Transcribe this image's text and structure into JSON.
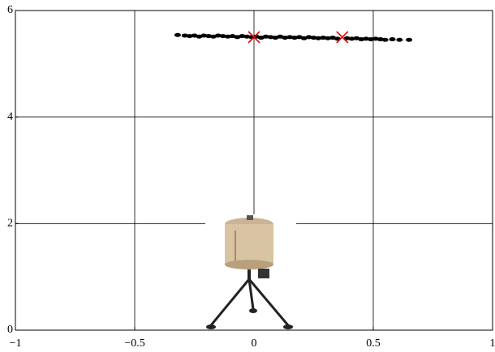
{
  "chart_data": {
    "type": "scatter",
    "xlim": [
      -1,
      1
    ],
    "xticks": [
      {
        "value": -1,
        "label": "−1"
      },
      {
        "value": -0.5,
        "label": "−0.5"
      },
      0,
      0.5,
      1
    ],
    "ylim": [
      0,
      6
    ],
    "yticks": [
      0,
      2,
      4,
      6
    ],
    "grid": true,
    "series": [
      {
        "color": "#000000",
        "marker": "dot",
        "x": [
          -0.32,
          -0.29,
          -0.27,
          -0.25,
          -0.23,
          -0.21,
          -0.19,
          -0.17,
          -0.15,
          -0.13,
          -0.11,
          -0.09,
          -0.07,
          -0.05,
          -0.03,
          -0.01,
          0.01,
          0.03,
          0.05,
          0.07,
          0.09,
          0.11,
          0.13,
          0.15,
          0.17,
          0.19,
          0.21,
          0.23,
          0.25,
          0.27,
          0.29,
          0.31,
          0.33,
          0.35,
          0.39,
          0.41,
          0.43,
          0.45,
          0.47,
          0.49,
          0.51,
          0.53,
          0.55,
          0.58,
          0.61,
          0.65
        ],
        "values": [
          5.54,
          5.53,
          5.52,
          5.53,
          5.51,
          5.53,
          5.52,
          5.51,
          5.53,
          5.52,
          5.51,
          5.52,
          5.5,
          5.52,
          5.51,
          5.5,
          5.51,
          5.49,
          5.51,
          5.5,
          5.49,
          5.51,
          5.49,
          5.5,
          5.49,
          5.5,
          5.48,
          5.5,
          5.49,
          5.48,
          5.49,
          5.48,
          5.49,
          5.47,
          5.48,
          5.47,
          5.48,
          5.46,
          5.47,
          5.46,
          5.47,
          5.46,
          5.45,
          5.46,
          5.45,
          5.45
        ]
      },
      {
        "color": "#e00000",
        "marker": "x",
        "x": [
          0,
          0.37
        ],
        "values": [
          5.5,
          5.5
        ]
      }
    ]
  }
}
